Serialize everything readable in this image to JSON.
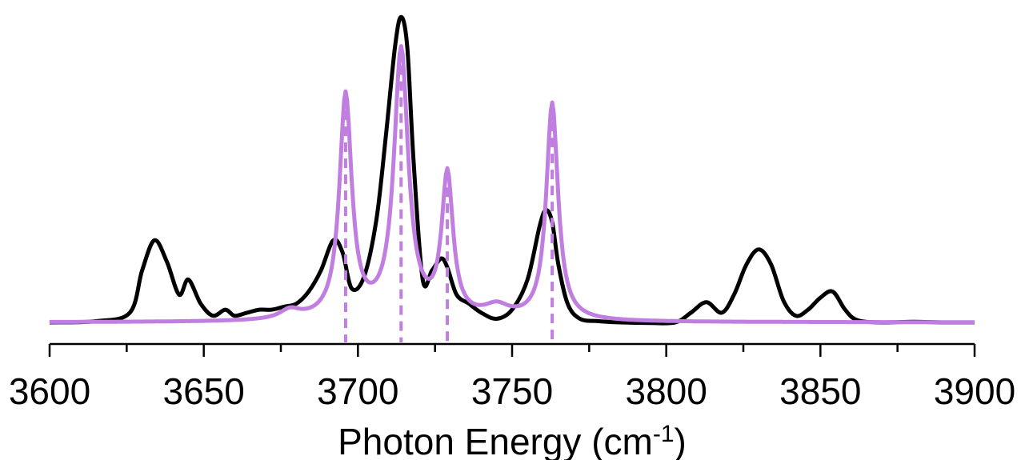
{
  "chart_data": {
    "type": "line",
    "title": "",
    "xlabel": "Photon Energy (cm",
    "xlabel_superscript": "-1",
    "xlabel_suffix": ")",
    "ylabel": "",
    "xlim": [
      3600,
      3900
    ],
    "ylim": [
      0,
      1.05
    ],
    "x_ticks": [
      3600,
      3650,
      3700,
      3750,
      3800,
      3850,
      3900
    ],
    "x_tick_labels": [
      "3600",
      "3650",
      "3700",
      "3750",
      "3800",
      "3850",
      "3900"
    ],
    "grid": false,
    "legend": "none",
    "series": [
      {
        "color": "#000000",
        "style": "solid",
        "x": [
          3600,
          3615,
          3626,
          3630,
          3634,
          3638,
          3642,
          3645,
          3649,
          3653,
          3657,
          3660,
          3664,
          3668,
          3672,
          3676,
          3680,
          3684,
          3688,
          3692,
          3695,
          3698,
          3702,
          3706,
          3709,
          3712,
          3714,
          3716,
          3718,
          3721,
          3724,
          3727,
          3729,
          3732,
          3736,
          3740,
          3745,
          3750,
          3755,
          3759,
          3761,
          3763,
          3765,
          3768,
          3772,
          3778,
          3785,
          3795,
          3803,
          3808,
          3813,
          3818,
          3822,
          3826,
          3830,
          3834,
          3838,
          3842,
          3846,
          3850,
          3854,
          3858,
          3862,
          3870,
          3880,
          3890,
          3900
        ],
        "y": [
          0.008,
          0.012,
          0.04,
          0.18,
          0.28,
          0.21,
          0.1,
          0.15,
          0.07,
          0.03,
          0.05,
          0.03,
          0.04,
          0.05,
          0.05,
          0.06,
          0.07,
          0.11,
          0.18,
          0.28,
          0.24,
          0.12,
          0.16,
          0.35,
          0.62,
          0.92,
          1.02,
          0.92,
          0.55,
          0.15,
          0.18,
          0.22,
          0.19,
          0.1,
          0.07,
          0.04,
          0.02,
          0.05,
          0.15,
          0.33,
          0.38,
          0.34,
          0.2,
          0.07,
          0.02,
          0.012,
          0.008,
          0.006,
          0.008,
          0.04,
          0.075,
          0.04,
          0.1,
          0.2,
          0.25,
          0.2,
          0.08,
          0.03,
          0.05,
          0.09,
          0.11,
          0.05,
          0.015,
          0.008,
          0.01,
          0.008,
          0.008
        ]
      },
      {
        "color": "#c07fe0",
        "style": "solid",
        "peaks": [
          {
            "x0": 3678,
            "amplitude": 0.03,
            "width": 4
          },
          {
            "x0": 3696,
            "amplitude": 0.74,
            "width": 2.4
          },
          {
            "x0": 3714,
            "amplitude": 0.89,
            "width": 2.8
          },
          {
            "x0": 3729,
            "amplitude": 0.47,
            "width": 2.2
          },
          {
            "x0": 3745,
            "amplitude": 0.04,
            "width": 5
          },
          {
            "x0": 3763,
            "amplitude": 0.72,
            "width": 2.3
          }
        ],
        "baseline": 0.008
      }
    ],
    "dashed_lines": {
      "color": "#c07fe0",
      "positions": [
        3696,
        3714,
        3729,
        3763
      ]
    }
  }
}
